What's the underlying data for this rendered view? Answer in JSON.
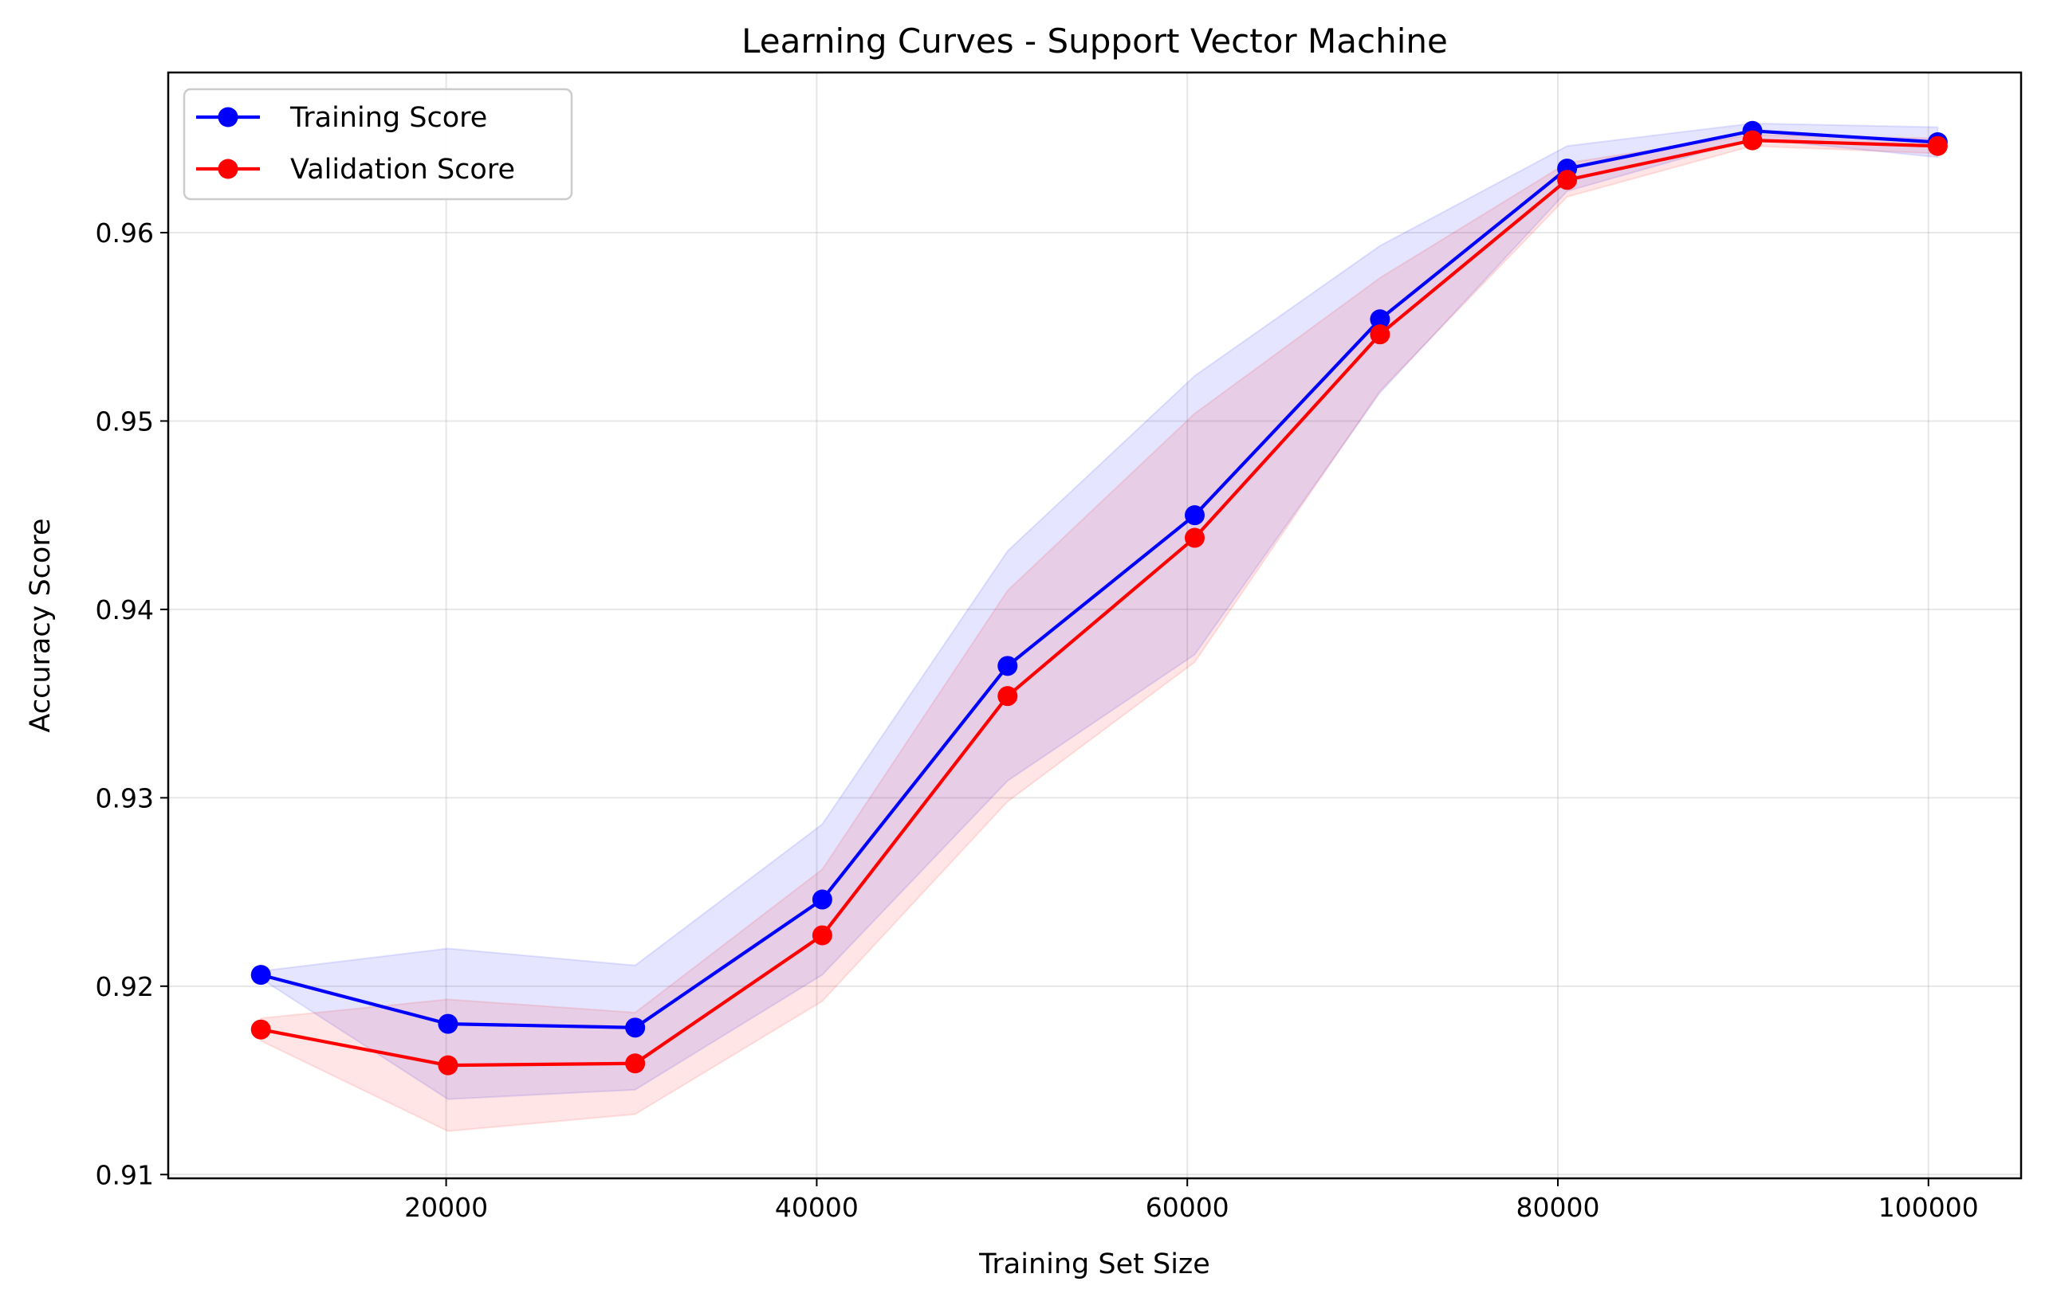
{
  "chart_data": {
    "type": "line",
    "title": "Learning Curves - Support Vector Machine",
    "xlabel": "Training Set Size",
    "ylabel": "Accuracy Score",
    "xlim": [
      5000,
      105000
    ],
    "ylim": [
      0.9098,
      0.9685
    ],
    "xticks": [
      20000,
      40000,
      60000,
      80000,
      100000
    ],
    "xtick_labels": [
      "20000",
      "40000",
      "60000",
      "80000",
      "100000"
    ],
    "yticks": [
      0.91,
      0.92,
      0.93,
      0.94,
      0.95,
      0.96
    ],
    "ytick_labels": [
      "0.91",
      "0.92",
      "0.93",
      "0.94",
      "0.95",
      "0.96"
    ],
    "grid": true,
    "legend_position": "upper left",
    "x": [
      10000,
      20100,
      30200,
      40300,
      50300,
      60400,
      70400,
      80500,
      90500,
      100500
    ],
    "series": [
      {
        "name": "Training Score",
        "color": "#0000ff",
        "band_color": "#8080ff",
        "marker": "circle",
        "values": [
          0.9206,
          0.918,
          0.9178,
          0.9246,
          0.937,
          0.945,
          0.9554,
          0.9634,
          0.9654,
          0.9648
        ],
        "band_upper": [
          0.9208,
          0.922,
          0.9211,
          0.9286,
          0.9431,
          0.9524,
          0.9593,
          0.9646,
          0.9658,
          0.9656
        ],
        "band_lower": [
          0.9204,
          0.914,
          0.9145,
          0.9206,
          0.9309,
          0.9376,
          0.9515,
          0.9622,
          0.965,
          0.964
        ]
      },
      {
        "name": "Validation Score",
        "color": "#ff0000",
        "band_color": "#ff8080",
        "marker": "circle",
        "values": [
          0.9177,
          0.9158,
          0.9159,
          0.9227,
          0.9354,
          0.9438,
          0.9546,
          0.9628,
          0.9649,
          0.9646
        ],
        "band_upper": [
          0.9183,
          0.9193,
          0.9186,
          0.9262,
          0.941,
          0.9504,
          0.9576,
          0.9637,
          0.9652,
          0.965
        ],
        "band_lower": [
          0.9171,
          0.9123,
          0.9132,
          0.9192,
          0.9298,
          0.9372,
          0.9516,
          0.9619,
          0.9646,
          0.9642
        ]
      }
    ]
  }
}
